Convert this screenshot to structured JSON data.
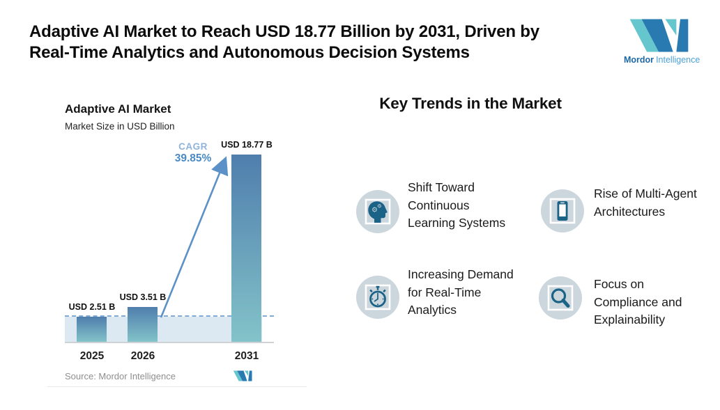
{
  "header": {
    "title_lines": [
      "Adaptive AI Market to Reach USD 18.77 Billion by 2031, Driven by",
      "Real-Time Analytics and Autonomous Decision Systems"
    ],
    "logo": {
      "word1": "Mordor",
      "word2": "Intelligence"
    }
  },
  "chart": {
    "title": "Adaptive AI Market",
    "subtitle": "Market Size in USD Billion",
    "cagr_label": "CAGR",
    "cagr_value": "39.85%",
    "source": "Source: Mordor Intelligence"
  },
  "chart_data": {
    "type": "bar",
    "title": "Adaptive AI Market",
    "subtitle": "Market Size in USD Billion",
    "xlabel": "",
    "ylabel": "Market Size in USD Billion",
    "unit": "USD Billion",
    "categories": [
      "2025",
      "2026",
      "2031"
    ],
    "values": [
      2.51,
      3.51,
      18.77
    ],
    "value_labels": [
      "USD 2.51 B",
      "USD 3.51 B",
      "USD 18.77 B"
    ],
    "annotations": [
      {
        "type": "cagr",
        "label": "CAGR",
        "value": "39.85%",
        "period": "2026-2031"
      },
      {
        "type": "dashed_reference_line",
        "at_value": 2.51
      },
      {
        "type": "shaded_band",
        "from": 0,
        "to": 2.51
      }
    ],
    "legend": "none",
    "grid": "off",
    "source": "Source: Mordor Intelligence"
  },
  "trends": {
    "heading": "Key Trends in the Market",
    "items": [
      {
        "icon": "head-gears-icon",
        "label": "Shift Toward Continuous Learning Systems"
      },
      {
        "icon": "smartphone-icon",
        "label": "Rise of Multi-Agent Architectures"
      },
      {
        "icon": "stopwatch-icon",
        "label": "Increasing Demand for Real-Time Analytics"
      },
      {
        "icon": "magnifier-icon",
        "label": "Focus on Compliance and Explainability"
      }
    ]
  },
  "colors": {
    "bar_gradient_top": "#4f7ead",
    "bar_gradient_bottom": "#83c3c9",
    "reference_band": "#dde9f2",
    "dashed_line": "#7fa9d6",
    "arrow": "#5b91c6",
    "cagr_label": "#8fb3dc",
    "cagr_value": "#4a8ac4",
    "icon_circle": "#ccd6dd",
    "icon_glyph": "#1b6287",
    "logo_teal": "#66c6ce",
    "logo_blue": "#2a7ab2",
    "title_text": "#0b0b0b",
    "source_text": "#8e8e8e"
  }
}
